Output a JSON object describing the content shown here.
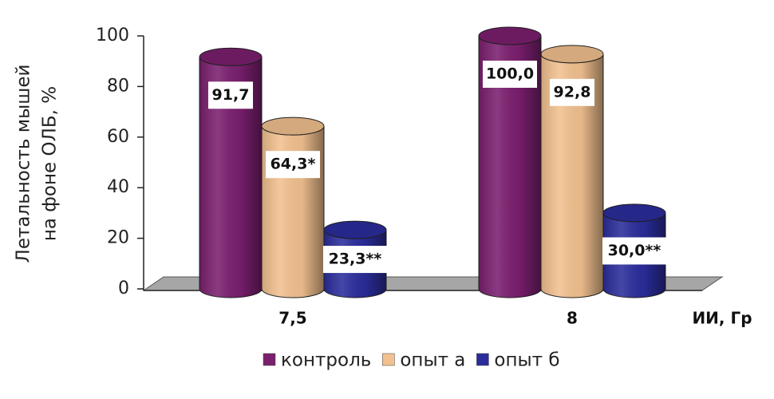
{
  "chart_data": {
    "type": "bar3d",
    "y_label": [
      "Летальность мышей",
      "на фоне ОЛБ, %"
    ],
    "x_label": "ИИ, Гр",
    "categories": [
      "7,5",
      "8"
    ],
    "series": [
      {
        "name": "контроль",
        "color": "#7b1f6f",
        "values": [
          91.7,
          100.0
        ],
        "value_labels": [
          "91,7",
          "100,0"
        ]
      },
      {
        "name": "опыт а",
        "color": "#f2c18f",
        "values": [
          64.3,
          92.8
        ],
        "value_labels": [
          "64,3*",
          "92,8"
        ]
      },
      {
        "name": "опыт б",
        "color": "#2b2d9c",
        "values": [
          23.3,
          30.0
        ],
        "value_labels": [
          "23,3**",
          "30,0**"
        ]
      }
    ],
    "ylim": [
      0,
      100
    ],
    "yticks": [
      0,
      20,
      40,
      60,
      80,
      100
    ],
    "legend": "bottom"
  }
}
